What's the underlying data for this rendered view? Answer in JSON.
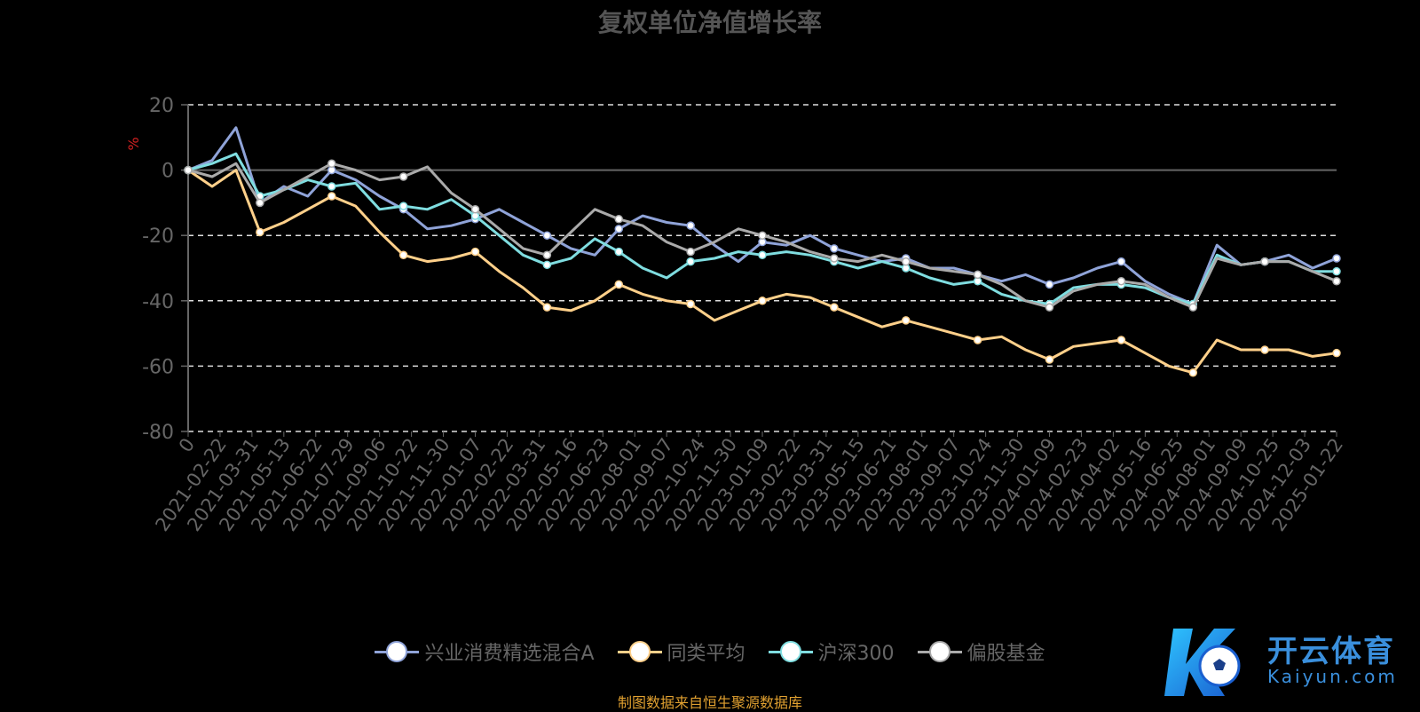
{
  "title": "复权单位净值增长率",
  "source_note": "制图数据来自恒生聚源数据库",
  "logo": {
    "cn": "开云体育",
    "en": "Kaiyun.com"
  },
  "chart_data": {
    "type": "line",
    "ylabel": "%",
    "ylim": [
      -80,
      20
    ],
    "yticks": [
      20,
      0,
      -20,
      -40,
      -60,
      -80
    ],
    "grid": true,
    "legend_position": "bottom",
    "x_ticks": [
      "0",
      "2021-02-22",
      "2021-03-31",
      "2021-05-13",
      "2021-06-22",
      "2021-07-29",
      "2021-09-06",
      "2021-10-22",
      "2021-11-30",
      "2022-01-07",
      "2022-02-22",
      "2022-03-31",
      "2022-05-16",
      "2022-06-23",
      "2022-08-01",
      "2022-09-07",
      "2022-10-24",
      "2022-11-30",
      "2023-01-09",
      "2023-02-22",
      "2023-03-31",
      "2023-05-15",
      "2023-06-21",
      "2023-08-01",
      "2023-09-07",
      "2023-10-24",
      "2023-11-30",
      "2024-01-09",
      "2024-02-23",
      "2024-04-02",
      "2024-05-16",
      "2024-06-25",
      "2024-08-01",
      "2024-09-09",
      "2024-10-25",
      "2024-12-03",
      "2025-01-22"
    ],
    "series": [
      {
        "name": "兴业消费精选混合A",
        "color": "#8fa3d8",
        "values": [
          0,
          3,
          13,
          -10,
          -5,
          -8,
          0,
          -3,
          -8,
          -12,
          -18,
          -17,
          -15,
          -12,
          -16,
          -20,
          -24,
          -26,
          -18,
          -14,
          -16,
          -17,
          -23,
          -28,
          -22,
          -23,
          -20,
          -24,
          -26,
          -28,
          -27,
          -30,
          -30,
          -32,
          -34,
          -32,
          -35,
          -33,
          -30,
          -28,
          -34,
          -38,
          -41,
          -23,
          -29,
          -28,
          -26,
          -30,
          -27
        ]
      },
      {
        "name": "同类平均",
        "color": "#ffd08a",
        "values": [
          0,
          -5,
          0,
          -19,
          -16,
          -12,
          -8,
          -11,
          -19,
          -26,
          -28,
          -27,
          -25,
          -31,
          -36,
          -42,
          -43,
          -40,
          -35,
          -38,
          -40,
          -41,
          -46,
          -43,
          -40,
          -38,
          -39,
          -42,
          -45,
          -48,
          -46,
          -48,
          -50,
          -52,
          -51,
          -55,
          -58,
          -54,
          -53,
          -52,
          -56,
          -60,
          -62,
          -52,
          -55,
          -55,
          -55,
          -57,
          -56
        ]
      },
      {
        "name": "沪深300",
        "color": "#7fdde0",
        "values": [
          0,
          2,
          5,
          -8,
          -6,
          -3,
          -5,
          -4,
          -12,
          -11,
          -12,
          -9,
          -14,
          -20,
          -26,
          -29,
          -27,
          -21,
          -25,
          -30,
          -33,
          -28,
          -27,
          -25,
          -26,
          -25,
          -26,
          -28,
          -30,
          -28,
          -30,
          -33,
          -35,
          -34,
          -38,
          -40,
          -41,
          -36,
          -35,
          -35,
          -36,
          -39,
          -41,
          -26,
          -29,
          -28,
          -28,
          -31,
          -31
        ]
      },
      {
        "name": "偏股基金",
        "color": "#aaaaaa",
        "values": [
          0,
          -2,
          2,
          -10,
          -6,
          -2,
          2,
          0,
          -3,
          -2,
          1,
          -7,
          -12,
          -18,
          -24,
          -26,
          -19,
          -12,
          -15,
          -17,
          -22,
          -25,
          -22,
          -18,
          -20,
          -22,
          -25,
          -27,
          -28,
          -26,
          -28,
          -30,
          -31,
          -32,
          -35,
          -40,
          -42,
          -37,
          -35,
          -34,
          -35,
          -39,
          -42,
          -27,
          -29,
          -28,
          -28,
          -31,
          -34
        ]
      }
    ]
  }
}
